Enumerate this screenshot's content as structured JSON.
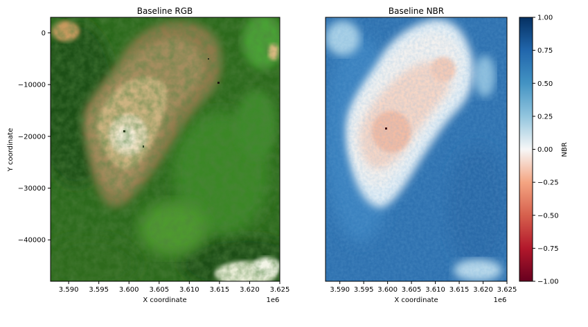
{
  "chart_data": [
    {
      "type": "image",
      "title": "Baseline RGB",
      "xlabel": "X coordinate",
      "ylabel": "Y coordinate",
      "xlim": [
        3.587,
        3.625
      ],
      "ylim": [
        -48000,
        3000
      ],
      "x_offset_label": "1e6",
      "xticks": [
        3.59,
        3.595,
        3.6,
        3.605,
        3.61,
        3.615,
        3.62,
        3.625
      ],
      "xtick_labels": [
        "3.590",
        "3.595",
        "3.600",
        "3.605",
        "3.610",
        "3.615",
        "3.620",
        "3.625"
      ],
      "yticks": [
        0,
        -10000,
        -20000,
        -30000,
        -40000
      ],
      "ytick_labels": [
        "0",
        "−10000",
        "−20000",
        "−30000",
        "−40000"
      ],
      "colors": {
        "forest": "#2e6b1e",
        "dark_forest": "#1c4a12",
        "grass": "#4a9a2c",
        "bare": "#a48a5c",
        "summit": "#f2e6cc"
      }
    },
    {
      "type": "heatmap",
      "title": "Baseline NBR",
      "xlabel": "X coordinate",
      "xlim": [
        3.587,
        3.625
      ],
      "ylim": [
        -48000,
        3000
      ],
      "x_offset_label": "1e6",
      "xticks": [
        3.59,
        3.595,
        3.6,
        3.605,
        3.61,
        3.615,
        3.62,
        3.625
      ],
      "xtick_labels": [
        "3.590",
        "3.595",
        "3.600",
        "3.605",
        "3.610",
        "3.615",
        "3.620",
        "3.625"
      ],
      "colormap": "RdBu",
      "colorbar": {
        "label": "NBR",
        "vmin": -1.0,
        "vmax": 1.0,
        "ticks": [
          1.0,
          0.75,
          0.5,
          0.25,
          0.0,
          -0.25,
          -0.5,
          -0.75,
          -1.0
        ],
        "tick_labels": [
          "1.00",
          "0.75",
          "0.50",
          "0.25",
          "0.00",
          "−0.25",
          "−0.50",
          "−0.75",
          "−1.00"
        ]
      },
      "colors": {
        "high": "#2f74b3",
        "mid": "#f7f5f3",
        "low": "#f4a582"
      }
    }
  ]
}
